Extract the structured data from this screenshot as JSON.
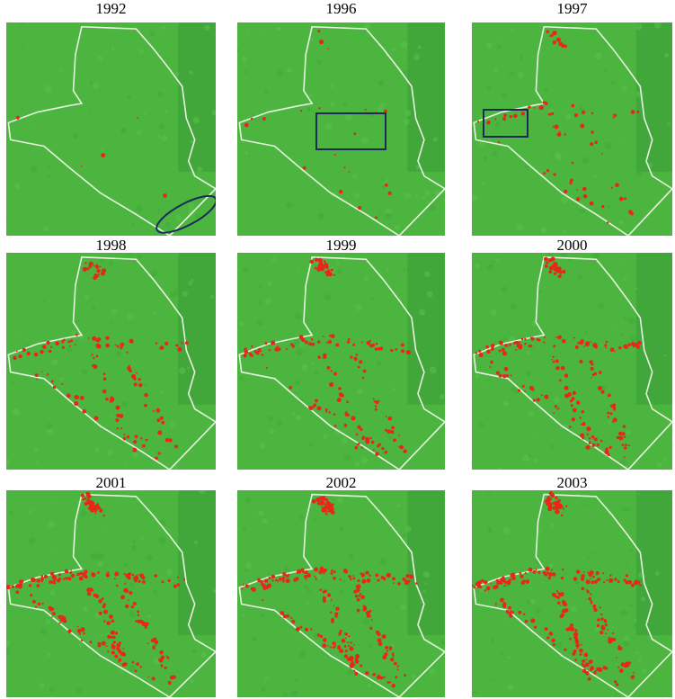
{
  "panels": [
    {
      "title": "1992"
    },
    {
      "title": "1996"
    },
    {
      "title": "1997"
    },
    {
      "title": "1998"
    },
    {
      "title": "1999"
    },
    {
      "title": "2000"
    },
    {
      "title": "2001"
    },
    {
      "title": "2002"
    },
    {
      "title": "2003"
    }
  ]
}
